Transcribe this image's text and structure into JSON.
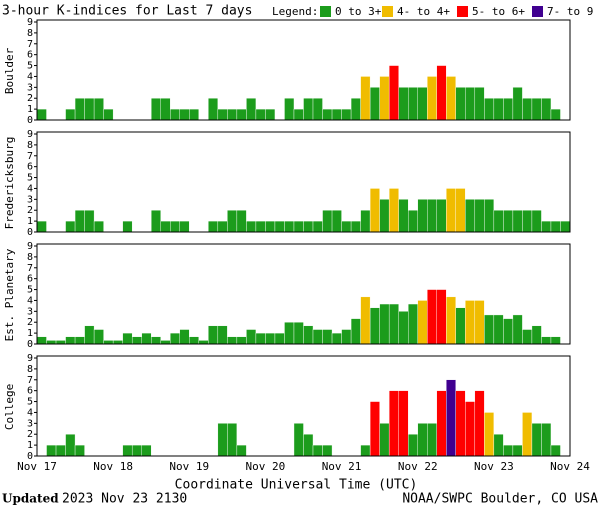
{
  "header": {
    "title": "3-hour K-indices for Last 7 days",
    "legend_title": "Legend:",
    "legend": [
      {
        "label": "0 to 3+",
        "color": "#1c9c1c"
      },
      {
        "label": "4- to 4+",
        "color": "#f0bc00"
      },
      {
        "label": "5- to 6+",
        "color": "#ff0000"
      },
      {
        "label": "7- to 9",
        "color": "#400090"
      }
    ]
  },
  "chart_data": [
    {
      "type": "bar",
      "ylabel": "Boulder",
      "ylim": [
        0,
        9
      ],
      "yticks": [
        0,
        1,
        2,
        3,
        4,
        5,
        6,
        7,
        8,
        9
      ],
      "values": [
        1,
        0,
        0,
        1,
        2,
        2,
        2,
        1,
        0,
        0,
        0,
        0,
        2,
        2,
        1,
        1,
        1,
        0,
        2,
        1,
        1,
        1,
        2,
        1,
        1,
        0,
        2,
        1,
        2,
        2,
        1,
        1,
        1,
        2,
        4,
        3,
        4,
        5,
        3,
        3,
        3,
        4,
        5,
        4,
        3,
        3,
        3,
        2,
        2,
        2,
        3,
        2,
        2,
        2,
        1,
        0
      ]
    },
    {
      "type": "bar",
      "ylabel": "Fredericksburg",
      "ylim": [
        0,
        9
      ],
      "yticks": [
        0,
        1,
        2,
        3,
        4,
        5,
        6,
        7,
        8,
        9
      ],
      "values": [
        1,
        0,
        0,
        1,
        2,
        2,
        1,
        0,
        0,
        1,
        0,
        0,
        2,
        1,
        1,
        1,
        0,
        0,
        1,
        1,
        2,
        2,
        1,
        1,
        1,
        1,
        1,
        1,
        1,
        1,
        2,
        2,
        1,
        1,
        2,
        4,
        3,
        4,
        3,
        2,
        3,
        3,
        3,
        4,
        4,
        3,
        3,
        3,
        2,
        2,
        2,
        2,
        2,
        1,
        1,
        1
      ]
    },
    {
      "type": "bar",
      "ylabel": "Est. Planetary",
      "ylim": [
        0,
        9
      ],
      "yticks": [
        0,
        1,
        2,
        3,
        4,
        5,
        6,
        7,
        8,
        9
      ],
      "values": [
        0.67,
        0.33,
        0.33,
        0.67,
        0.67,
        1.67,
        1.33,
        0.33,
        0.33,
        1,
        0.67,
        1,
        0.67,
        0.33,
        1,
        1.33,
        0.67,
        0.33,
        1.67,
        1.67,
        0.67,
        0.67,
        1.33,
        1,
        1,
        1,
        2,
        2,
        1.67,
        1.33,
        1.33,
        1,
        1.33,
        2.33,
        4.33,
        3.33,
        3.67,
        3.67,
        3,
        3.67,
        4,
        5,
        5,
        4.33,
        3.33,
        4,
        4,
        2.67,
        2.67,
        2.33,
        2.67,
        1.33,
        1.67,
        0.67,
        0.67,
        0
      ]
    },
    {
      "type": "bar",
      "ylabel": "College",
      "ylim": [
        0,
        9
      ],
      "yticks": [
        0,
        1,
        2,
        3,
        4,
        5,
        6,
        7,
        8,
        9
      ],
      "values": [
        0,
        1,
        1,
        2,
        1,
        0,
        0,
        0,
        0,
        1,
        1,
        1,
        0,
        0,
        0,
        0,
        0,
        0,
        0,
        3,
        3,
        1,
        0,
        0,
        0,
        0,
        0,
        3,
        2,
        1,
        1,
        0,
        0,
        0,
        1,
        5,
        3,
        6,
        6,
        2,
        3,
        3,
        6,
        7,
        6,
        5,
        6,
        4,
        2,
        1,
        1,
        4,
        3,
        3,
        1,
        0
      ]
    }
  ],
  "x_axis": {
    "labels": [
      "Nov 17",
      "Nov 18",
      "Nov 19",
      "Nov 20",
      "Nov 21",
      "Nov 22",
      "Nov 23",
      "Nov 24"
    ],
    "title": "Coordinate Universal Time (UTC)"
  },
  "footer": {
    "updated_label": "Updated",
    "updated": "2023 Nov 23 2130",
    "source": "NOAA/SWPC Boulder, CO USA"
  }
}
